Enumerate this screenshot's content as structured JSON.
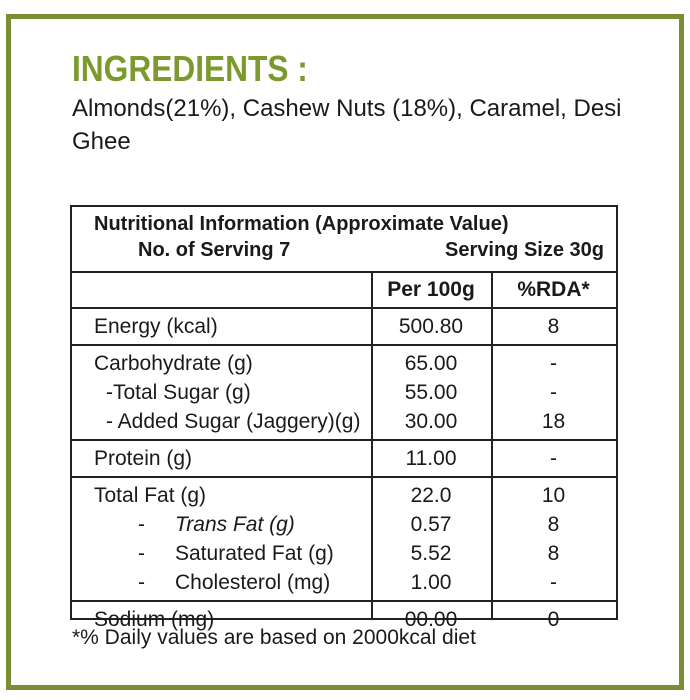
{
  "ingredients": {
    "title": "INGREDIENTS :",
    "text": "Almonds(21%), Cashew Nuts (18%), Caramel, Desi Ghee"
  },
  "table": {
    "title": "Nutritional Information (Approximate Value)",
    "servings": "No. of Serving 7",
    "serving_size": "Serving Size 30g",
    "columns": [
      "Per 100g",
      "%RDA*"
    ],
    "groups": [
      {
        "rows": [
          {
            "label": "Energy (kcal)",
            "per_100g": "500.80",
            "rda": "8"
          }
        ]
      },
      {
        "rows": [
          {
            "label": "Carbohydrate (g)",
            "per_100g": "65.00",
            "rda": "-"
          },
          {
            "label": "-Total Sugar (g)",
            "per_100g": "55.00",
            "rda": "-"
          },
          {
            "label": "- Added Sugar (Jaggery)(g)",
            "per_100g": "30.00",
            "rda": "18"
          }
        ]
      },
      {
        "rows": [
          {
            "label": "Protein (g)",
            "per_100g": "11.00",
            "rda": "-"
          }
        ]
      },
      {
        "rows": [
          {
            "label": "Total Fat (g)",
            "per_100g": "22.0",
            "rda": "10"
          },
          {
            "prefix": "-",
            "label": "Trans Fat (g)",
            "per_100g": "0.57",
            "rda": "8"
          },
          {
            "prefix": "-",
            "label": "Saturated Fat (g)",
            "per_100g": "5.52",
            "rda": "8"
          },
          {
            "prefix": "-",
            "label": "Cholesterol (mg)",
            "per_100g": "1.00",
            "rda": "-"
          }
        ]
      },
      {
        "rows": [
          {
            "label": "Sodium (mg)",
            "per_100g": "00.00",
            "rda": "0"
          }
        ]
      }
    ]
  },
  "footnote": "*% Daily values are based on 2000kcal diet"
}
